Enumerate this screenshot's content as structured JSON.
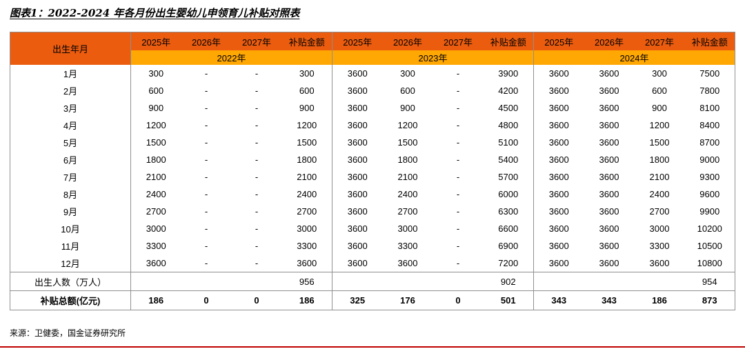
{
  "colors": {
    "header_primary": "#EB5C0F",
    "header_secondary": "#FFA703",
    "rule": "#C00000",
    "border": "#8f8f8f"
  },
  "chart_data": {
    "type": "table",
    "title": "图表1：2022-2024 年各月份出生婴幼儿申领育儿补贴对照表",
    "corner_header": "出生年月",
    "groups": [
      "2022年",
      "2023年",
      "2024年"
    ],
    "sub_columns": [
      "2025年",
      "2026年",
      "2027年",
      "补贴金额"
    ],
    "months": [
      "1月",
      "2月",
      "3月",
      "4月",
      "5月",
      "6月",
      "7月",
      "8月",
      "9月",
      "10月",
      "11月",
      "12月"
    ],
    "rows": [
      [
        "300",
        "-",
        "-",
        "300",
        "3600",
        "300",
        "-",
        "3900",
        "3600",
        "3600",
        "300",
        "7500"
      ],
      [
        "600",
        "-",
        "-",
        "600",
        "3600",
        "600",
        "-",
        "4200",
        "3600",
        "3600",
        "600",
        "7800"
      ],
      [
        "900",
        "-",
        "-",
        "900",
        "3600",
        "900",
        "-",
        "4500",
        "3600",
        "3600",
        "900",
        "8100"
      ],
      [
        "1200",
        "-",
        "-",
        "1200",
        "3600",
        "1200",
        "-",
        "4800",
        "3600",
        "3600",
        "1200",
        "8400"
      ],
      [
        "1500",
        "-",
        "-",
        "1500",
        "3600",
        "1500",
        "-",
        "5100",
        "3600",
        "3600",
        "1500",
        "8700"
      ],
      [
        "1800",
        "-",
        "-",
        "1800",
        "3600",
        "1800",
        "-",
        "5400",
        "3600",
        "3600",
        "1800",
        "9000"
      ],
      [
        "2100",
        "-",
        "-",
        "2100",
        "3600",
        "2100",
        "-",
        "5700",
        "3600",
        "3600",
        "2100",
        "9300"
      ],
      [
        "2400",
        "-",
        "-",
        "2400",
        "3600",
        "2400",
        "-",
        "6000",
        "3600",
        "3600",
        "2400",
        "9600"
      ],
      [
        "2700",
        "-",
        "-",
        "2700",
        "3600",
        "2700",
        "-",
        "6300",
        "3600",
        "3600",
        "2700",
        "9900"
      ],
      [
        "3000",
        "-",
        "-",
        "3000",
        "3600",
        "3000",
        "-",
        "6600",
        "3600",
        "3600",
        "3000",
        "10200"
      ],
      [
        "3300",
        "-",
        "-",
        "3300",
        "3600",
        "3300",
        "-",
        "6900",
        "3600",
        "3600",
        "3300",
        "10500"
      ],
      [
        "3600",
        "-",
        "-",
        "3600",
        "3600",
        "3600",
        "-",
        "7200",
        "3600",
        "3600",
        "3600",
        "10800"
      ]
    ],
    "birth_population_row": {
      "label": "出生人数（万人）",
      "values": [
        "956",
        "902",
        "954"
      ]
    },
    "subsidy_total_row": {
      "label": "补贴总额(亿元)",
      "values": [
        "186",
        "0",
        "0",
        "186",
        "325",
        "176",
        "0",
        "501",
        "343",
        "343",
        "186",
        "873"
      ]
    },
    "source": "来源：卫健委，国金证券研究所"
  }
}
